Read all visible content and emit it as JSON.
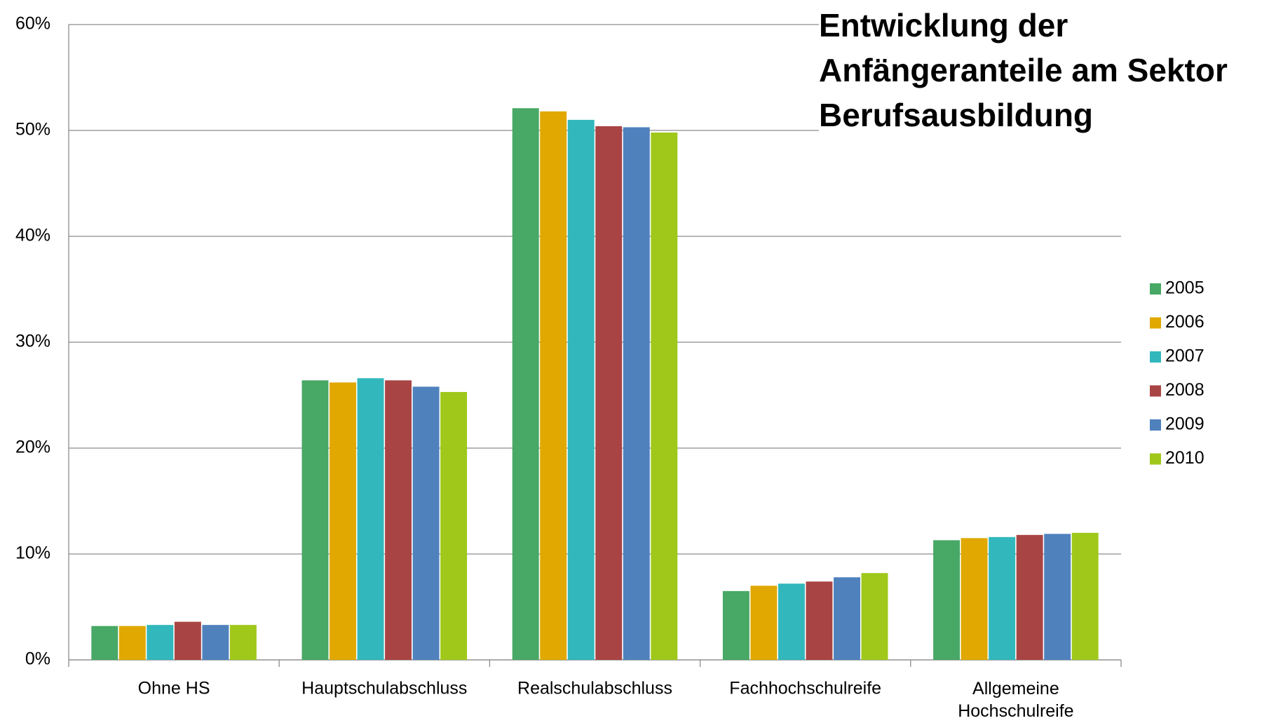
{
  "chart_data": {
    "type": "bar",
    "title": "Entwicklung der Anfängeranteile am Sektor Berufsausbildung",
    "categories": [
      "Ohne HS",
      "Hauptschulabschluss",
      "Realschulabschluss",
      "Fachhochschulreife",
      "Allgemeine Hochschulreife"
    ],
    "series": [
      {
        "name": "2005",
        "color": "#48a865",
        "values": [
          3.2,
          26.4,
          52.1,
          6.5,
          11.3
        ]
      },
      {
        "name": "2006",
        "color": "#e0a800",
        "values": [
          3.2,
          26.2,
          51.8,
          7.0,
          11.5
        ]
      },
      {
        "name": "2007",
        "color": "#31b7bc",
        "values": [
          3.3,
          26.6,
          51.0,
          7.2,
          11.6
        ]
      },
      {
        "name": "2008",
        "color": "#a84544",
        "values": [
          3.6,
          26.4,
          50.4,
          7.4,
          11.8
        ]
      },
      {
        "name": "2009",
        "color": "#4f81bd",
        "values": [
          3.3,
          25.8,
          50.3,
          7.8,
          11.9
        ]
      },
      {
        "name": "2010",
        "color": "#9fc81a",
        "values": [
          3.3,
          25.3,
          49.8,
          8.2,
          12.0
        ]
      }
    ],
    "ylim": [
      0,
      60
    ],
    "yticks": [
      {
        "value": 0,
        "label": "0%"
      },
      {
        "value": 10,
        "label": "10%"
      },
      {
        "value": 20,
        "label": "20%"
      },
      {
        "value": 30,
        "label": "30%"
      },
      {
        "value": 40,
        "label": "40%"
      },
      {
        "value": 50,
        "label": "50%"
      },
      {
        "value": 60,
        "label": "60%"
      }
    ],
    "grid": true,
    "legend": "right"
  }
}
